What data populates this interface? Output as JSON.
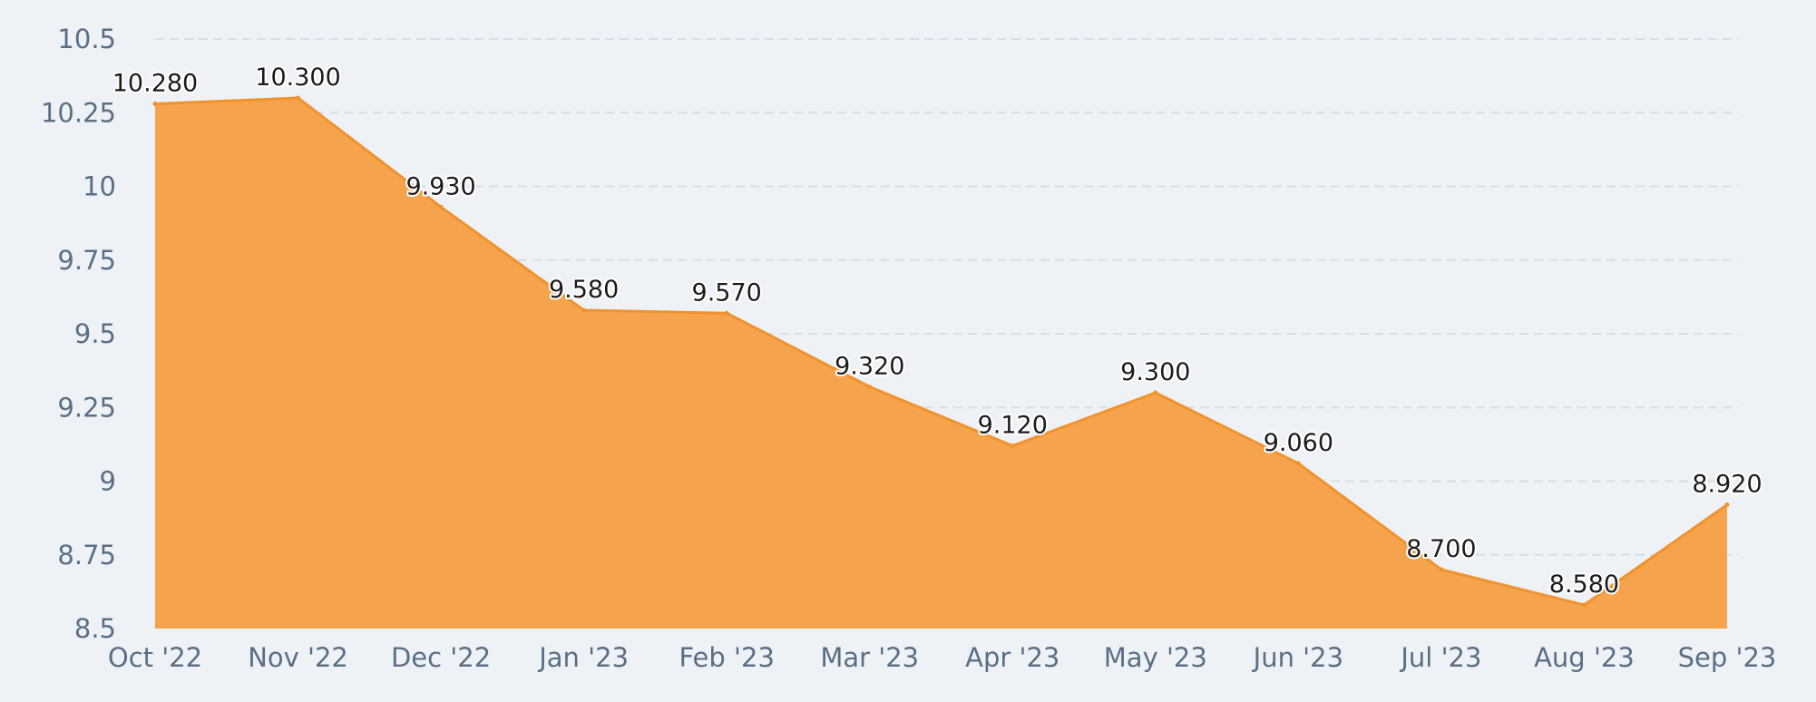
{
  "chart_data": {
    "type": "area",
    "categories": [
      "Oct '22",
      "Nov '22",
      "Dec '22",
      "Jan '23",
      "Feb '23",
      "Mar '23",
      "Apr '23",
      "May '23",
      "Jun '23",
      "Jul '23",
      "Aug '23",
      "Sep '23"
    ],
    "values": [
      10.28,
      10.3,
      9.93,
      9.58,
      9.57,
      9.32,
      9.12,
      9.3,
      9.06,
      8.7,
      8.58,
      8.92
    ],
    "data_labels": [
      "10.280",
      "10.300",
      "9.930",
      "9.580",
      "9.570",
      "9.320",
      "9.120",
      "9.300",
      "9.060",
      "8.700",
      "8.580",
      "8.920"
    ],
    "y_ticks": [
      "8.5",
      "8.75",
      "9",
      "9.25",
      "9.5",
      "9.75",
      "10",
      "10.25",
      "10.5"
    ],
    "ylim": [
      8.5,
      10.5
    ],
    "grid": true,
    "title": "",
    "xlabel": "",
    "ylabel": "",
    "colors": {
      "area_fill": "#f5a34c",
      "line": "#f0932f",
      "grid": "#d7dee7",
      "background": "#eef2f6"
    }
  }
}
